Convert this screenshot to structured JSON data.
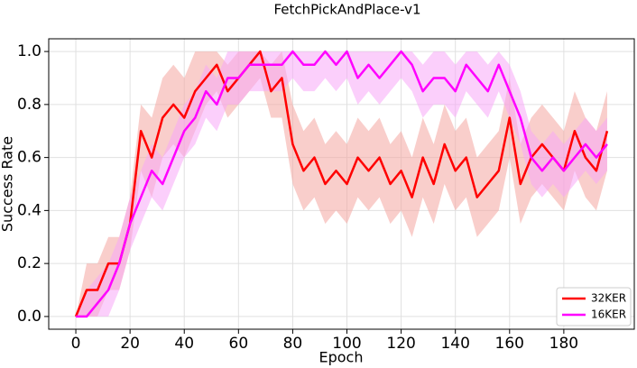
{
  "chart_data": {
    "type": "line",
    "title": "FetchPickAndPlace-v1",
    "x_label": "Epoch",
    "y_label": "Success Rate",
    "x": [
      0,
      4,
      8,
      12,
      16,
      20,
      24,
      28,
      32,
      36,
      40,
      44,
      48,
      52,
      56,
      60,
      64,
      68,
      72,
      76,
      80,
      84,
      88,
      92,
      96,
      100,
      104,
      108,
      112,
      116,
      120,
      124,
      128,
      132,
      136,
      140,
      144,
      148,
      152,
      156,
      160,
      164,
      168,
      172,
      176,
      180,
      184,
      188,
      192,
      196
    ],
    "series": [
      {
        "name": "32KER",
        "color": "#ff0000",
        "band_color": "#f4a6a0",
        "values": [
          0,
          0.1,
          0.1,
          0.2,
          0.2,
          0.35,
          0.7,
          0.6,
          0.75,
          0.8,
          0.75,
          0.85,
          0.9,
          0.95,
          0.85,
          0.9,
          0.95,
          1.0,
          0.85,
          0.9,
          0.65,
          0.55,
          0.6,
          0.5,
          0.55,
          0.5,
          0.6,
          0.55,
          0.6,
          0.5,
          0.55,
          0.45,
          0.6,
          0.5,
          0.65,
          0.55,
          0.6,
          0.45,
          0.5,
          0.55,
          0.75,
          0.5,
          0.6,
          0.65,
          0.6,
          0.55,
          0.7,
          0.6,
          0.55,
          0.7
        ],
        "lower": [
          0,
          0,
          0,
          0.1,
          0.1,
          0.25,
          0.55,
          0.45,
          0.6,
          0.65,
          0.6,
          0.7,
          0.8,
          0.85,
          0.75,
          0.8,
          0.85,
          0.9,
          0.75,
          0.75,
          0.5,
          0.4,
          0.45,
          0.35,
          0.4,
          0.35,
          0.45,
          0.4,
          0.45,
          0.35,
          0.4,
          0.3,
          0.45,
          0.35,
          0.5,
          0.4,
          0.45,
          0.3,
          0.35,
          0.4,
          0.6,
          0.35,
          0.45,
          0.5,
          0.45,
          0.4,
          0.55,
          0.45,
          0.4,
          0.55
        ],
        "upper": [
          0,
          0.2,
          0.2,
          0.3,
          0.3,
          0.45,
          0.8,
          0.75,
          0.9,
          0.95,
          0.9,
          1.0,
          1.0,
          1.0,
          0.95,
          1.0,
          1.0,
          1.0,
          0.95,
          1.0,
          0.8,
          0.7,
          0.75,
          0.65,
          0.7,
          0.65,
          0.75,
          0.7,
          0.75,
          0.65,
          0.7,
          0.6,
          0.75,
          0.65,
          0.8,
          0.7,
          0.75,
          0.6,
          0.65,
          0.7,
          0.9,
          0.65,
          0.75,
          0.8,
          0.75,
          0.7,
          0.85,
          0.75,
          0.7,
          0.85
        ]
      },
      {
        "name": "16KER",
        "color": "#ff00ff",
        "band_color": "#f7a8f7",
        "values": [
          0,
          0,
          0.05,
          0.1,
          0.2,
          0.35,
          0.45,
          0.55,
          0.5,
          0.6,
          0.7,
          0.75,
          0.85,
          0.8,
          0.9,
          0.9,
          0.95,
          0.95,
          0.95,
          0.95,
          1.0,
          0.95,
          0.95,
          1.0,
          0.95,
          1.0,
          0.9,
          0.95,
          0.9,
          0.95,
          1.0,
          0.95,
          0.85,
          0.9,
          0.9,
          0.85,
          0.95,
          0.9,
          0.85,
          0.95,
          0.85,
          0.75,
          0.6,
          0.55,
          0.6,
          0.55,
          0.6,
          0.65,
          0.6,
          0.65
        ],
        "lower": [
          0,
          0,
          0,
          0,
          0.1,
          0.25,
          0.35,
          0.45,
          0.4,
          0.5,
          0.6,
          0.65,
          0.75,
          0.7,
          0.8,
          0.8,
          0.85,
          0.85,
          0.85,
          0.85,
          0.9,
          0.85,
          0.85,
          0.9,
          0.85,
          0.9,
          0.8,
          0.85,
          0.8,
          0.85,
          0.9,
          0.85,
          0.75,
          0.8,
          0.8,
          0.75,
          0.85,
          0.8,
          0.75,
          0.85,
          0.75,
          0.65,
          0.5,
          0.45,
          0.5,
          0.45,
          0.5,
          0.55,
          0.5,
          0.55
        ],
        "upper": [
          0,
          0.1,
          0.15,
          0.2,
          0.3,
          0.45,
          0.55,
          0.65,
          0.6,
          0.7,
          0.8,
          0.85,
          0.95,
          0.9,
          1.0,
          1.0,
          1.0,
          1.0,
          1.0,
          1.0,
          1.0,
          1.0,
          1.0,
          1.0,
          1.0,
          1.0,
          1.0,
          1.0,
          1.0,
          1.0,
          1.0,
          1.0,
          0.95,
          1.0,
          1.0,
          0.95,
          1.0,
          1.0,
          0.95,
          1.0,
          0.95,
          0.85,
          0.7,
          0.65,
          0.7,
          0.65,
          0.7,
          0.75,
          0.7,
          0.75
        ]
      }
    ],
    "xlim": [
      -10,
      206
    ],
    "ylim": [
      -0.048,
      1.048
    ],
    "xticks": [
      0,
      20,
      40,
      60,
      80,
      100,
      120,
      140,
      160,
      180
    ],
    "yticks": [
      {
        "value": 0,
        "label": "0.0"
      },
      0.2,
      0.4,
      0.6,
      0.8,
      {
        "value": 1,
        "label": "1.0"
      }
    ],
    "grid": true,
    "legend": "lower right"
  }
}
